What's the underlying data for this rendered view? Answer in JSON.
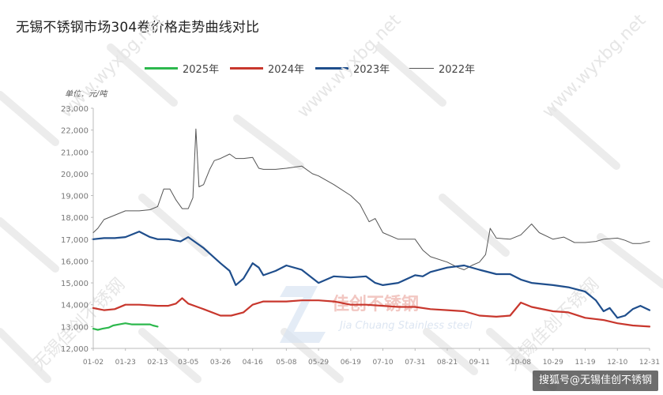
{
  "title": "无锡不锈钢市场304卷价格走势曲线对比",
  "unit_label": "单位：元/吨",
  "watermark_logo_text": "佳创不锈钢",
  "watermark_logo_subtext": "Jia Chuang Stainless steel",
  "watermark_diagonal_text": "www.wyxbg.net",
  "watermark_diagonal_text_2": "无锡佳创不锈钢",
  "footer_credit": "搜狐号@无锡佳创不锈钢",
  "chart_data": {
    "type": "line",
    "title": "无锡不锈钢市场304卷价格走势曲线对比",
    "unit": "单位：元/吨",
    "ylim": [
      12000,
      23000
    ],
    "yticks": [
      "12,000",
      "13,000",
      "14,000",
      "15,000",
      "16,000",
      "17,000",
      "18,000",
      "19,000",
      "20,000",
      "21,000",
      "22,000",
      "23,000"
    ],
    "x_range": [
      "01-02",
      "12-31"
    ],
    "xticks": [
      "01-02",
      "01-23",
      "02-13",
      "03-05",
      "03-26",
      "04-16",
      "05-08",
      "05-29",
      "06-19",
      "07-10",
      "07-31",
      "08-21",
      "09-11",
      "10-08",
      "10-29",
      "11-19",
      "12-10",
      "12-31"
    ],
    "grid": false,
    "legend_position": "top",
    "series": [
      {
        "name": "2025年",
        "color": "#2db84d",
        "points": [
          [
            "01-02",
            12900
          ],
          [
            "01-05",
            12850
          ],
          [
            "01-08",
            12900
          ],
          [
            "01-12",
            12950
          ],
          [
            "01-15",
            13050
          ],
          [
            "01-19",
            13100
          ],
          [
            "01-23",
            13150
          ],
          [
            "01-27",
            13100
          ],
          [
            "01-31",
            13100
          ],
          [
            "02-04",
            13100
          ],
          [
            "02-08",
            13100
          ],
          [
            "02-10",
            13050
          ],
          [
            "02-13",
            13000
          ]
        ]
      },
      {
        "name": "2024年",
        "color": "#c8372d",
        "points": [
          [
            "01-02",
            13850
          ],
          [
            "01-09",
            13750
          ],
          [
            "01-16",
            13800
          ],
          [
            "01-23",
            14000
          ],
          [
            "02-01",
            14000
          ],
          [
            "02-13",
            13950
          ],
          [
            "02-20",
            13950
          ],
          [
            "02-25",
            14050
          ],
          [
            "03-01",
            14300
          ],
          [
            "03-05",
            14050
          ],
          [
            "03-15",
            13800
          ],
          [
            "03-26",
            13500
          ],
          [
            "04-02",
            13500
          ],
          [
            "04-10",
            13650
          ],
          [
            "04-16",
            14000
          ],
          [
            "04-23",
            14150
          ],
          [
            "05-01",
            14150
          ],
          [
            "05-08",
            14150
          ],
          [
            "05-18",
            14200
          ],
          [
            "05-29",
            14200
          ],
          [
            "06-08",
            14150
          ],
          [
            "06-19",
            14000
          ],
          [
            "06-29",
            14000
          ],
          [
            "07-10",
            13950
          ],
          [
            "07-20",
            13900
          ],
          [
            "07-31",
            13900
          ],
          [
            "08-10",
            13800
          ],
          [
            "08-21",
            13750
          ],
          [
            "09-01",
            13700
          ],
          [
            "09-11",
            13500
          ],
          [
            "09-22",
            13450
          ],
          [
            "10-01",
            13500
          ],
          [
            "10-08",
            14100
          ],
          [
            "10-15",
            13900
          ],
          [
            "10-29",
            13700
          ],
          [
            "11-08",
            13650
          ],
          [
            "11-19",
            13400
          ],
          [
            "12-01",
            13300
          ],
          [
            "12-10",
            13150
          ],
          [
            "12-20",
            13050
          ],
          [
            "12-31",
            13000
          ]
        ]
      },
      {
        "name": "2023年",
        "color": "#1f4e8c",
        "points": [
          [
            "01-02",
            17000
          ],
          [
            "01-09",
            17050
          ],
          [
            "01-16",
            17050
          ],
          [
            "01-23",
            17100
          ],
          [
            "02-01",
            17350
          ],
          [
            "02-08",
            17100
          ],
          [
            "02-13",
            17000
          ],
          [
            "02-20",
            17000
          ],
          [
            "02-28",
            16900
          ],
          [
            "03-05",
            17100
          ],
          [
            "03-15",
            16600
          ],
          [
            "03-26",
            15900
          ],
          [
            "04-01",
            15550
          ],
          [
            "04-05",
            14900
          ],
          [
            "04-10",
            15200
          ],
          [
            "04-16",
            15900
          ],
          [
            "04-20",
            15700
          ],
          [
            "04-23",
            15350
          ],
          [
            "05-01",
            15550
          ],
          [
            "05-08",
            15800
          ],
          [
            "05-18",
            15600
          ],
          [
            "05-29",
            15000
          ],
          [
            "06-08",
            15300
          ],
          [
            "06-19",
            15250
          ],
          [
            "06-29",
            15300
          ],
          [
            "07-05",
            15000
          ],
          [
            "07-10",
            14900
          ],
          [
            "07-20",
            15000
          ],
          [
            "07-31",
            15350
          ],
          [
            "08-05",
            15300
          ],
          [
            "08-10",
            15500
          ],
          [
            "08-21",
            15700
          ],
          [
            "09-01",
            15800
          ],
          [
            "09-11",
            15600
          ],
          [
            "09-22",
            15400
          ],
          [
            "10-01",
            15400
          ],
          [
            "10-08",
            15150
          ],
          [
            "10-15",
            15000
          ],
          [
            "10-29",
            14900
          ],
          [
            "11-08",
            14800
          ],
          [
            "11-19",
            14600
          ],
          [
            "11-26",
            14200
          ],
          [
            "12-01",
            13700
          ],
          [
            "12-05",
            13850
          ],
          [
            "12-10",
            13400
          ],
          [
            "12-15",
            13500
          ],
          [
            "12-20",
            13800
          ],
          [
            "12-25",
            13950
          ],
          [
            "12-31",
            13750
          ]
        ]
      },
      {
        "name": "2022年",
        "color": "#555555",
        "points": [
          [
            "01-02",
            17300
          ],
          [
            "01-05",
            17500
          ],
          [
            "01-09",
            17900
          ],
          [
            "01-16",
            18100
          ],
          [
            "01-23",
            18300
          ],
          [
            "02-01",
            18300
          ],
          [
            "02-08",
            18350
          ],
          [
            "02-13",
            18500
          ],
          [
            "02-17",
            19300
          ],
          [
            "02-21",
            19300
          ],
          [
            "02-25",
            18800
          ],
          [
            "03-01",
            18400
          ],
          [
            "03-05",
            18400
          ],
          [
            "03-08",
            18900
          ],
          [
            "03-10",
            22050
          ],
          [
            "03-12",
            19400
          ],
          [
            "03-15",
            19500
          ],
          [
            "03-19",
            20200
          ],
          [
            "03-22",
            20600
          ],
          [
            "03-26",
            20700
          ],
          [
            "04-01",
            20900
          ],
          [
            "04-05",
            20700
          ],
          [
            "04-10",
            20700
          ],
          [
            "04-16",
            20750
          ],
          [
            "04-20",
            20250
          ],
          [
            "04-23",
            20200
          ],
          [
            "05-01",
            20200
          ],
          [
            "05-08",
            20250
          ],
          [
            "05-18",
            20350
          ],
          [
            "05-25",
            20000
          ],
          [
            "05-29",
            19900
          ],
          [
            "06-08",
            19500
          ],
          [
            "06-19",
            19000
          ],
          [
            "06-25",
            18600
          ],
          [
            "07-01",
            17800
          ],
          [
            "07-05",
            17950
          ],
          [
            "07-10",
            17300
          ],
          [
            "07-20",
            17000
          ],
          [
            "07-31",
            17000
          ],
          [
            "08-05",
            16500
          ],
          [
            "08-10",
            16200
          ],
          [
            "08-21",
            15950
          ],
          [
            "08-28",
            15700
          ],
          [
            "09-01",
            15600
          ],
          [
            "09-06",
            15800
          ],
          [
            "09-11",
            15950
          ],
          [
            "09-15",
            16300
          ],
          [
            "09-18",
            17500
          ],
          [
            "09-22",
            17050
          ],
          [
            "10-01",
            17000
          ],
          [
            "10-08",
            17200
          ],
          [
            "10-15",
            17700
          ],
          [
            "10-20",
            17300
          ],
          [
            "10-29",
            17000
          ],
          [
            "11-05",
            17100
          ],
          [
            "11-12",
            16850
          ],
          [
            "11-19",
            16850
          ],
          [
            "11-26",
            16900
          ],
          [
            "12-01",
            17000
          ],
          [
            "12-10",
            17050
          ],
          [
            "12-15",
            16950
          ],
          [
            "12-20",
            16800
          ],
          [
            "12-25",
            16800
          ],
          [
            "12-31",
            16900
          ]
        ]
      }
    ]
  }
}
